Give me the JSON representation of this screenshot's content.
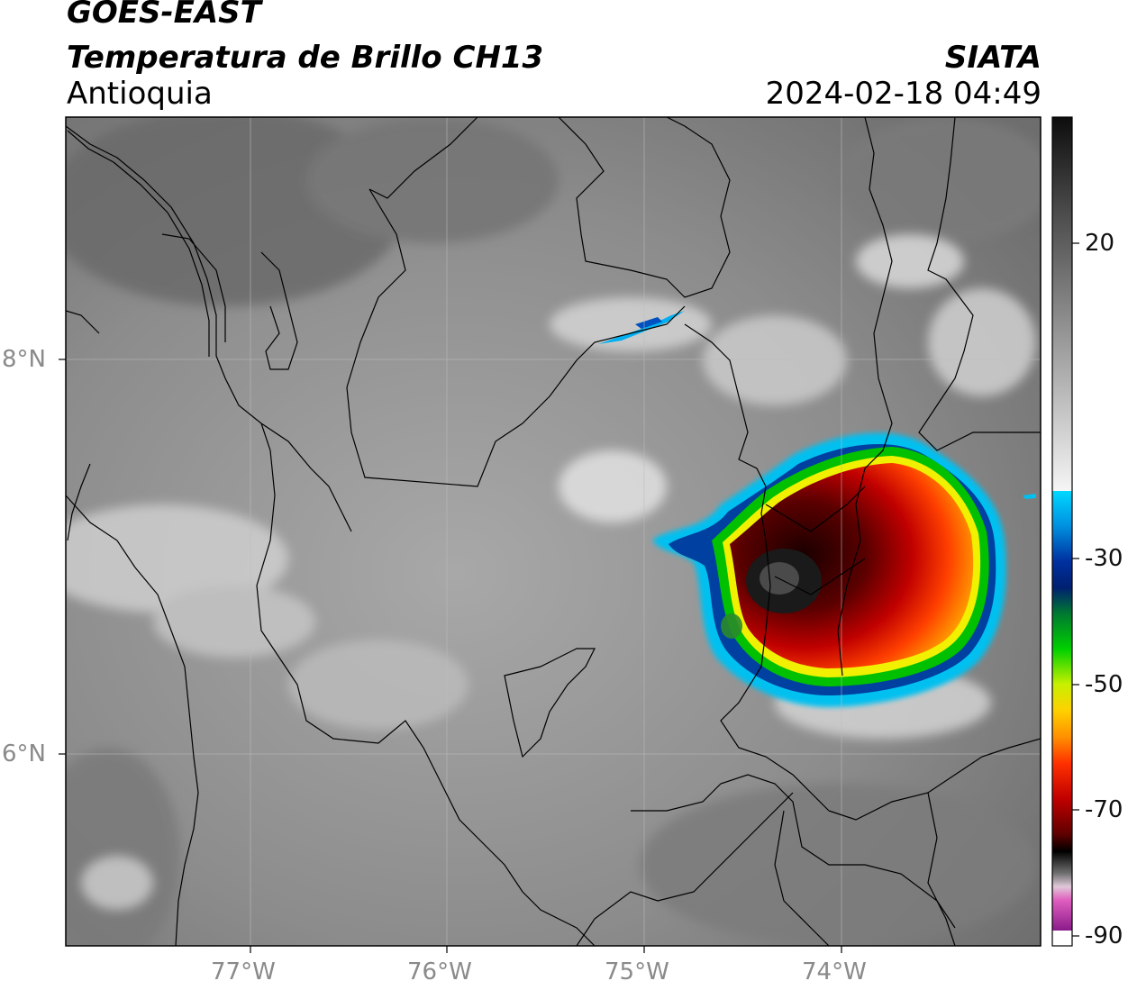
{
  "header": {
    "satellite": "GOES-EAST",
    "product": "Temperatura de Brillo CH13",
    "region": "Antioquia",
    "brand": "SIATA",
    "datetime": "2024-02-18 04:49"
  },
  "axes": {
    "lon_labels": [
      "77°W",
      "76°W",
      "75°W",
      "74°W"
    ],
    "lat_labels": [
      "8°N",
      "6°N"
    ]
  },
  "colorbar": {
    "tick_labels": [
      "20",
      "-30",
      "-50",
      "-70",
      "-90"
    ],
    "range": [
      -90,
      40
    ],
    "colors": {
      "warm_gray_top": "#111111",
      "cyan": "#00d8ff",
      "blue": "#003399",
      "green": "#00c000",
      "yellow": "#f5f500",
      "orange": "#ff8c00",
      "red": "#e00000",
      "dark_red": "#500000",
      "black": "#000000",
      "magenta": "#c040c0",
      "purple": "#8a1a8a"
    }
  },
  "storm": {
    "description_colors": [
      "#000000",
      "#4a0000",
      "#c00000",
      "#ff3000",
      "#ffa500",
      "#f5f500",
      "#00c000",
      "#0040a0",
      "#00b8ff"
    ]
  }
}
